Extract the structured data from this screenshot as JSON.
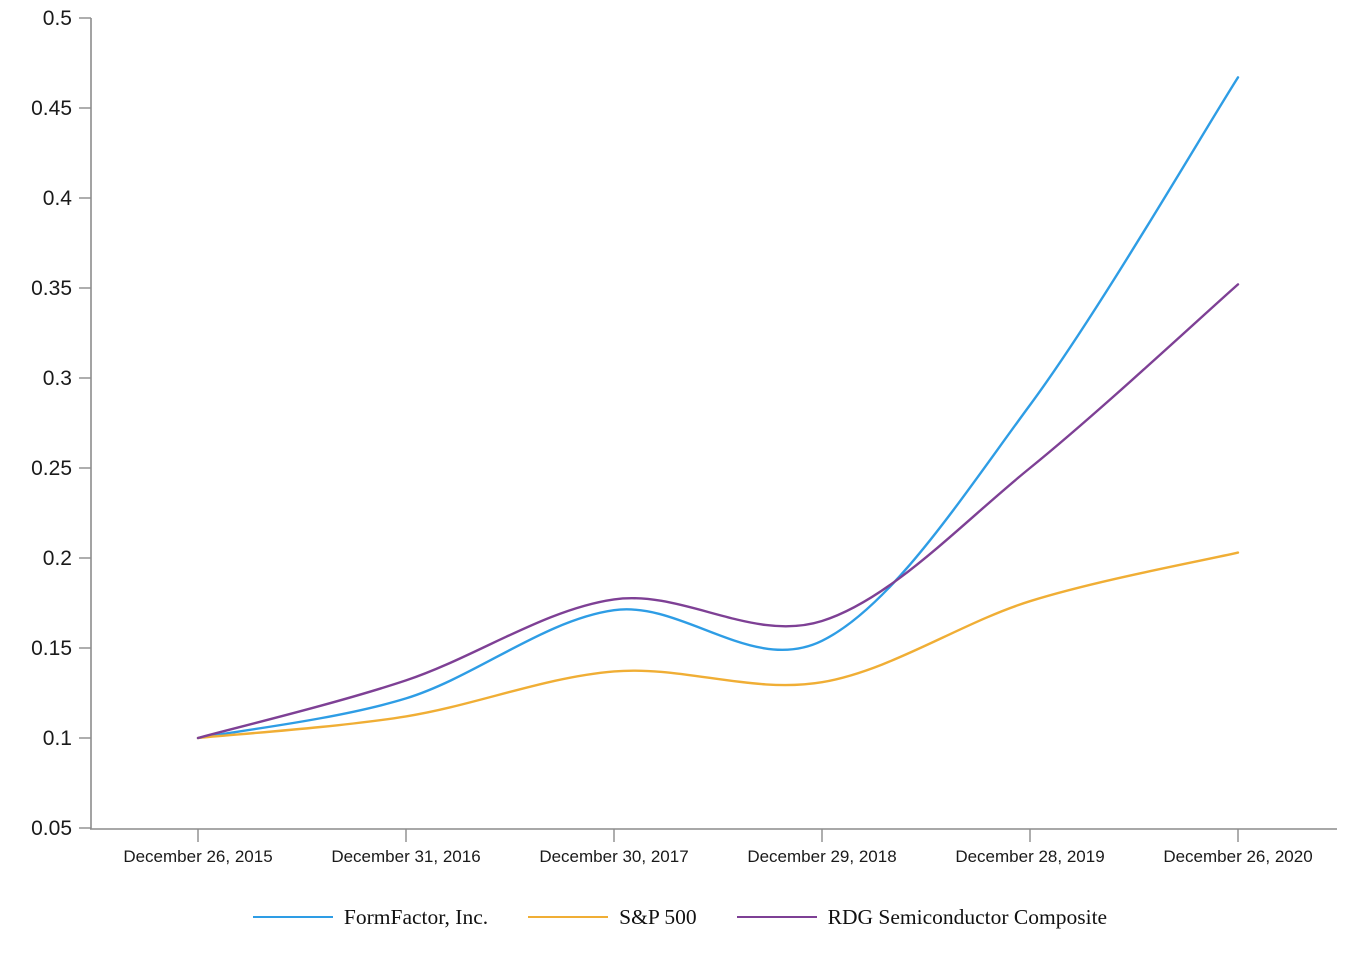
{
  "chart_data": {
    "type": "line",
    "title": "",
    "xlabel": "",
    "ylabel": "",
    "categories": [
      "December 26, 2015",
      "December 31, 2016",
      "December 30, 2017",
      "December 29, 2018",
      "December 28, 2019",
      "December 26, 2020"
    ],
    "series": [
      {
        "name": "FormFactor, Inc.",
        "color": "#2E9DE5",
        "values": [
          0.1,
          0.122,
          0.171,
          0.154,
          0.285,
          0.467
        ]
      },
      {
        "name": "S&P 500",
        "color": "#F0AE35",
        "values": [
          0.1,
          0.112,
          0.137,
          0.131,
          0.176,
          0.203
        ]
      },
      {
        "name": "RDG Semiconductor Composite",
        "color": "#7E4095",
        "values": [
          0.1,
          0.132,
          0.177,
          0.165,
          0.25,
          0.352
        ]
      }
    ],
    "ylim": [
      0.05,
      0.5
    ],
    "ytick_values": [
      0.5,
      0.45,
      0.4,
      0.35,
      0.3,
      0.25,
      0.2,
      0.15,
      0.1,
      0.05
    ],
    "ytick_labels": [
      "0.5",
      "0.45",
      "0.4",
      "0.35",
      "0.3",
      "0.25",
      "0.2",
      "0.15",
      "0.1",
      "0.05"
    ],
    "grid": false,
    "legend_position": "bottom",
    "curve": "smooth",
    "axis_color": "#8c8c8c",
    "text_color": "#1a1a1a",
    "background_color": "#ffffff"
  }
}
